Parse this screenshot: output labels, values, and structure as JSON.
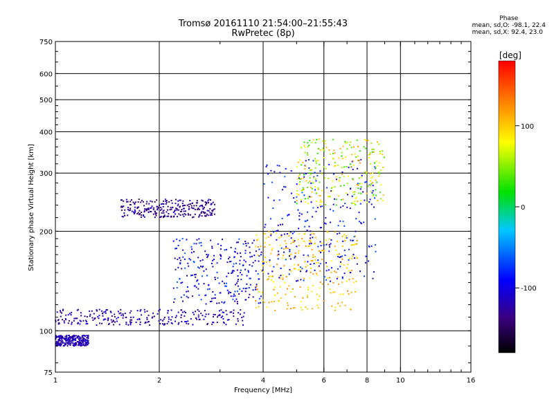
{
  "title_line1": "Tromsø 20161110 21:54:00–21:55:43",
  "title_line2": "RwPretec (8p)",
  "phase_box": {
    "title": "Phase",
    "line_o": "mean, sd,O: -98.1, 22.4",
    "line_x": "mean, sd,X:  92.4, 23.0"
  },
  "colorbar": {
    "label": "[deg]",
    "ticks": [
      "100",
      "0",
      "-100"
    ],
    "tick_values": [
      100,
      0,
      -100
    ],
    "range": [
      -180,
      180
    ]
  },
  "chart_data": {
    "type": "scatter",
    "xlabel": "Frequency [MHz]",
    "ylabel": "Stationary phase Virtual Height [km]",
    "x_scale": "log",
    "y_scale": "log",
    "xlim": [
      1,
      16
    ],
    "ylim": [
      75,
      750
    ],
    "grid": true,
    "x_ticks": [
      1,
      2,
      4,
      6,
      8,
      10,
      16
    ],
    "x_tick_labels": [
      "1",
      "2",
      "4",
      "6",
      "8",
      "10",
      "16"
    ],
    "y_ticks": [
      75,
      100,
      200,
      300,
      400,
      500,
      600,
      750
    ],
    "y_tick_labels": [
      "75",
      "100",
      "200",
      "300",
      "400",
      "500",
      "600",
      "750"
    ],
    "point_groups": [
      {
        "x_range": [
          1.0,
          3.6
        ],
        "y_range": [
          104,
          116
        ],
        "phase_range": [
          -140,
          -100
        ]
      },
      {
        "x_range": [
          1.0,
          1.25
        ],
        "y_range": [
          90,
          97
        ],
        "phase_range": [
          -130,
          -105
        ]
      },
      {
        "x_range": [
          1.55,
          2.9
        ],
        "y_range": [
          220,
          250
        ],
        "phase_range": [
          -150,
          -110
        ]
      },
      {
        "x_range": [
          2.2,
          4.0
        ],
        "y_range": [
          120,
          190
        ],
        "phase_range": [
          -130,
          -60
        ]
      },
      {
        "x_range": [
          3.8,
          7.5
        ],
        "y_range": [
          115,
          200
        ],
        "phase_range": [
          80,
          130
        ]
      },
      {
        "x_range": [
          4.0,
          8.5
        ],
        "y_range": [
          140,
          330
        ],
        "phase_range": [
          -120,
          -60
        ]
      },
      {
        "x_range": [
          5.0,
          9.0
        ],
        "y_range": [
          240,
          380
        ],
        "phase_range": [
          20,
          120
        ]
      }
    ]
  }
}
